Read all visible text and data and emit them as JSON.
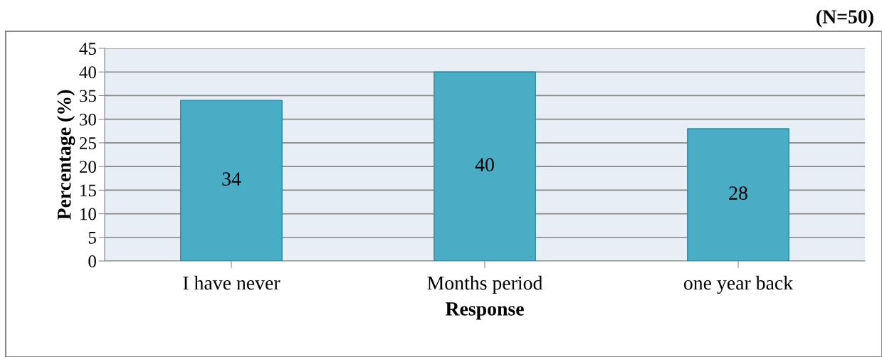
{
  "chart_data": {
    "type": "bar",
    "xlabel": "Response",
    "ylabel": "Percentage (%)",
    "categories": [
      "I have never",
      "Months period",
      "one year back"
    ],
    "values": [
      34,
      40,
      28
    ],
    "color": "#4bacc6",
    "ylim": [
      0,
      45
    ],
    "yticks": [
      0,
      5,
      10,
      15,
      20,
      25,
      30,
      35,
      40,
      45
    ],
    "grid": "y",
    "data_labels": true,
    "annotations": [
      "(N=50)"
    ]
  }
}
